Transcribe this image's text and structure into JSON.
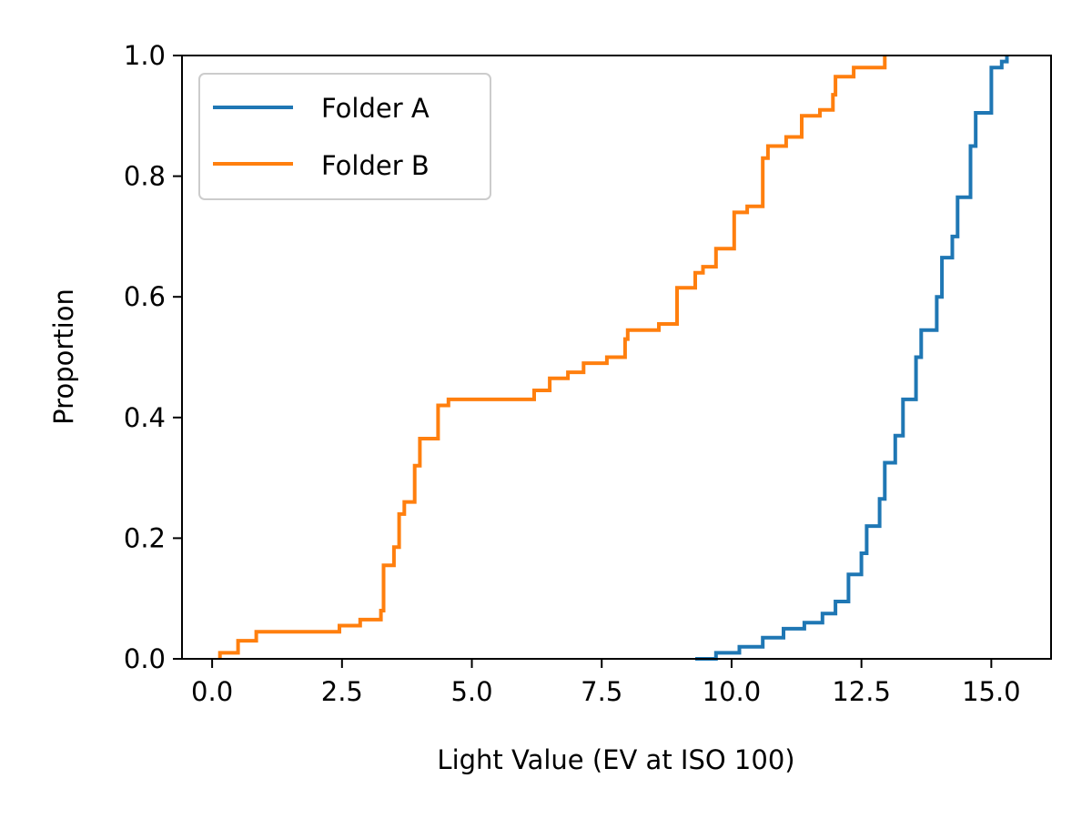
{
  "chart_data": {
    "type": "line",
    "subtype": "ecdf-step",
    "title": "",
    "xlabel": "Light Value (EV at ISO 100)",
    "ylabel": "Proportion",
    "xlim": [
      -0.58,
      16.15
    ],
    "ylim": [
      0.0,
      1.0
    ],
    "xticks": [
      0.0,
      2.5,
      5.0,
      7.5,
      10.0,
      12.5,
      15.0
    ],
    "xtick_labels": [
      "0.0",
      "2.5",
      "5.0",
      "7.5",
      "10.0",
      "12.5",
      "15.0"
    ],
    "yticks": [
      0.0,
      0.2,
      0.4,
      0.6,
      0.8,
      1.0
    ],
    "ytick_labels": [
      "0.0",
      "0.2",
      "0.4",
      "0.6",
      "0.8",
      "1.0"
    ],
    "grid": false,
    "legend": {
      "position": "top-left"
    },
    "series": [
      {
        "name": "Folder A",
        "color": "#1f77b4",
        "points": [
          [
            9.3,
            0.0
          ],
          [
            9.7,
            0.0
          ],
          [
            9.7,
            0.01
          ],
          [
            10.15,
            0.01
          ],
          [
            10.15,
            0.02
          ],
          [
            10.6,
            0.02
          ],
          [
            10.6,
            0.035
          ],
          [
            11.0,
            0.035
          ],
          [
            11.0,
            0.05
          ],
          [
            11.4,
            0.05
          ],
          [
            11.4,
            0.06
          ],
          [
            11.75,
            0.06
          ],
          [
            11.75,
            0.075
          ],
          [
            12.0,
            0.075
          ],
          [
            12.0,
            0.095
          ],
          [
            12.25,
            0.095
          ],
          [
            12.25,
            0.14
          ],
          [
            12.5,
            0.14
          ],
          [
            12.5,
            0.175
          ],
          [
            12.6,
            0.175
          ],
          [
            12.6,
            0.22
          ],
          [
            12.85,
            0.22
          ],
          [
            12.85,
            0.265
          ],
          [
            12.95,
            0.265
          ],
          [
            12.95,
            0.325
          ],
          [
            13.15,
            0.325
          ],
          [
            13.15,
            0.37
          ],
          [
            13.3,
            0.37
          ],
          [
            13.3,
            0.43
          ],
          [
            13.55,
            0.43
          ],
          [
            13.55,
            0.5
          ],
          [
            13.65,
            0.5
          ],
          [
            13.65,
            0.545
          ],
          [
            13.95,
            0.545
          ],
          [
            13.95,
            0.6
          ],
          [
            14.05,
            0.6
          ],
          [
            14.05,
            0.665
          ],
          [
            14.25,
            0.665
          ],
          [
            14.25,
            0.7
          ],
          [
            14.35,
            0.7
          ],
          [
            14.35,
            0.765
          ],
          [
            14.6,
            0.765
          ],
          [
            14.6,
            0.85
          ],
          [
            14.7,
            0.85
          ],
          [
            14.7,
            0.905
          ],
          [
            15.0,
            0.905
          ],
          [
            15.0,
            0.98
          ],
          [
            15.2,
            0.98
          ],
          [
            15.2,
            0.99
          ],
          [
            15.3,
            0.99
          ],
          [
            15.3,
            1.0
          ]
        ]
      },
      {
        "name": "Folder B",
        "color": "#ff7f0e",
        "points": [
          [
            0.15,
            0.0
          ],
          [
            0.15,
            0.01
          ],
          [
            0.5,
            0.01
          ],
          [
            0.5,
            0.03
          ],
          [
            0.85,
            0.03
          ],
          [
            0.85,
            0.045
          ],
          [
            2.45,
            0.045
          ],
          [
            2.45,
            0.055
          ],
          [
            2.85,
            0.055
          ],
          [
            2.85,
            0.065
          ],
          [
            3.25,
            0.065
          ],
          [
            3.25,
            0.08
          ],
          [
            3.3,
            0.08
          ],
          [
            3.3,
            0.155
          ],
          [
            3.5,
            0.155
          ],
          [
            3.5,
            0.185
          ],
          [
            3.6,
            0.185
          ],
          [
            3.6,
            0.24
          ],
          [
            3.7,
            0.24
          ],
          [
            3.7,
            0.26
          ],
          [
            3.9,
            0.26
          ],
          [
            3.9,
            0.32
          ],
          [
            4.0,
            0.32
          ],
          [
            4.0,
            0.365
          ],
          [
            4.35,
            0.365
          ],
          [
            4.35,
            0.42
          ],
          [
            4.55,
            0.42
          ],
          [
            4.55,
            0.43
          ],
          [
            6.2,
            0.43
          ],
          [
            6.2,
            0.445
          ],
          [
            6.5,
            0.445
          ],
          [
            6.5,
            0.465
          ],
          [
            6.85,
            0.465
          ],
          [
            6.85,
            0.475
          ],
          [
            7.15,
            0.475
          ],
          [
            7.15,
            0.49
          ],
          [
            7.6,
            0.49
          ],
          [
            7.6,
            0.5
          ],
          [
            7.95,
            0.5
          ],
          [
            7.95,
            0.53
          ],
          [
            8.0,
            0.53
          ],
          [
            8.0,
            0.545
          ],
          [
            8.6,
            0.545
          ],
          [
            8.6,
            0.555
          ],
          [
            8.95,
            0.555
          ],
          [
            8.95,
            0.615
          ],
          [
            9.3,
            0.615
          ],
          [
            9.3,
            0.64
          ],
          [
            9.45,
            0.64
          ],
          [
            9.45,
            0.65
          ],
          [
            9.7,
            0.65
          ],
          [
            9.7,
            0.68
          ],
          [
            10.05,
            0.68
          ],
          [
            10.05,
            0.74
          ],
          [
            10.3,
            0.74
          ],
          [
            10.3,
            0.75
          ],
          [
            10.6,
            0.75
          ],
          [
            10.6,
            0.83
          ],
          [
            10.7,
            0.83
          ],
          [
            10.7,
            0.85
          ],
          [
            11.05,
            0.85
          ],
          [
            11.05,
            0.865
          ],
          [
            11.35,
            0.865
          ],
          [
            11.35,
            0.9
          ],
          [
            11.7,
            0.9
          ],
          [
            11.7,
            0.91
          ],
          [
            11.95,
            0.91
          ],
          [
            11.95,
            0.935
          ],
          [
            12.0,
            0.935
          ],
          [
            12.0,
            0.965
          ],
          [
            12.35,
            0.965
          ],
          [
            12.35,
            0.98
          ],
          [
            12.95,
            0.98
          ],
          [
            12.95,
            1.0
          ]
        ]
      }
    ]
  }
}
